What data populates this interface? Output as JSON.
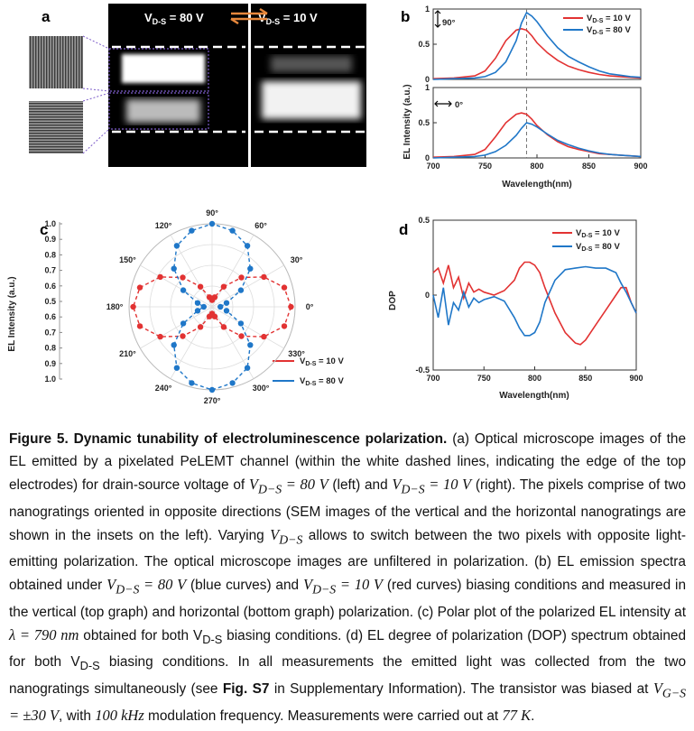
{
  "panel_a": {
    "label": "a",
    "left_title": "V",
    "left_sub": "D-S",
    "left_val": " = 80 V",
    "right_title": "V",
    "right_sub": "D-S",
    "right_val": " = 10 V",
    "swap_icon": "double-arrow-icon",
    "swap_color": "#e8883c"
  },
  "chart_data": [
    {
      "id": "b_top",
      "type": "line",
      "panel": "b",
      "annotation": "90°",
      "ylabel": "EL Intensity (a.u.)",
      "xlim": [
        700,
        900
      ],
      "ylim": [
        0,
        1
      ],
      "yticks": [
        "0",
        "0.5",
        "1"
      ],
      "xticks": [],
      "vline_x": 790,
      "series": [
        {
          "name": "VD-S = 10 V",
          "color": "#e23232",
          "x": [
            700,
            720,
            740,
            750,
            760,
            770,
            780,
            785,
            790,
            795,
            800,
            810,
            820,
            830,
            840,
            850,
            860,
            870,
            880,
            890,
            900
          ],
          "y": [
            0.01,
            0.02,
            0.05,
            0.12,
            0.3,
            0.55,
            0.7,
            0.72,
            0.7,
            0.62,
            0.52,
            0.38,
            0.27,
            0.19,
            0.14,
            0.1,
            0.07,
            0.05,
            0.04,
            0.03,
            0.02
          ]
        },
        {
          "name": "VD-S = 80 V",
          "color": "#1f77c8",
          "x": [
            700,
            720,
            740,
            750,
            760,
            770,
            780,
            785,
            790,
            795,
            800,
            810,
            820,
            830,
            840,
            850,
            860,
            870,
            880,
            890,
            900
          ],
          "y": [
            0.0,
            0.01,
            0.02,
            0.04,
            0.1,
            0.25,
            0.55,
            0.8,
            0.95,
            0.9,
            0.82,
            0.62,
            0.45,
            0.33,
            0.25,
            0.18,
            0.12,
            0.08,
            0.06,
            0.04,
            0.03
          ]
        }
      ]
    },
    {
      "id": "b_bottom",
      "type": "line",
      "panel": "b",
      "annotation": "0°",
      "xlabel": "Wavelength(nm)",
      "xlim": [
        700,
        900
      ],
      "ylim": [
        0,
        1
      ],
      "yticks": [
        "0",
        "0.5",
        "1"
      ],
      "xticks": [
        "700",
        "750",
        "800",
        "850",
        "900"
      ],
      "vline_x": 790,
      "series": [
        {
          "name": "VD-S = 10 V",
          "color": "#e23232",
          "x": [
            700,
            720,
            740,
            750,
            760,
            770,
            780,
            785,
            790,
            795,
            800,
            810,
            820,
            830,
            840,
            850,
            860,
            870,
            880,
            890,
            900
          ],
          "y": [
            0.01,
            0.02,
            0.05,
            0.12,
            0.3,
            0.5,
            0.62,
            0.64,
            0.62,
            0.55,
            0.46,
            0.33,
            0.23,
            0.16,
            0.12,
            0.09,
            0.06,
            0.05,
            0.04,
            0.03,
            0.02
          ]
        },
        {
          "name": "VD-S = 80 V",
          "color": "#1f77c8",
          "x": [
            700,
            720,
            740,
            750,
            760,
            770,
            780,
            785,
            790,
            795,
            800,
            810,
            820,
            830,
            840,
            850,
            860,
            870,
            880,
            890,
            900
          ],
          "y": [
            0.0,
            0.01,
            0.02,
            0.04,
            0.09,
            0.18,
            0.32,
            0.42,
            0.5,
            0.48,
            0.44,
            0.34,
            0.25,
            0.19,
            0.14,
            0.1,
            0.07,
            0.05,
            0.04,
            0.03,
            0.02
          ]
        }
      ]
    },
    {
      "id": "c",
      "type": "scatter",
      "panel": "c",
      "label": "c",
      "ylabel": "EL Intensity (a.u.)",
      "rticks": [
        "1.0",
        "0.9",
        "0.8",
        "0.7",
        "0.6",
        "0.5",
        "0.6",
        "0.7",
        "0.8",
        "0.9",
        "1.0"
      ],
      "angle_labels": [
        "90°",
        "60°",
        "30°",
        "0°",
        "330°",
        "300°",
        "270°",
        "240°",
        "210°",
        "180°",
        "150°",
        "120°"
      ],
      "series": [
        {
          "name": "VD-S = 10 V",
          "color": "#e23232",
          "theta": [
            0,
            15,
            30,
            45,
            60,
            75,
            90,
            105,
            120,
            135,
            150,
            165,
            180,
            195,
            210,
            225,
            240,
            255,
            270,
            285,
            300,
            315,
            330,
            345
          ],
          "r": [
            0.95,
            0.9,
            0.72,
            0.5,
            0.28,
            0.12,
            0.08,
            0.12,
            0.28,
            0.5,
            0.72,
            0.9,
            0.95,
            0.9,
            0.72,
            0.5,
            0.28,
            0.12,
            0.08,
            0.12,
            0.28,
            0.5,
            0.72,
            0.9
          ]
        },
        {
          "name": "VD-S = 80 V",
          "color": "#1f77c8",
          "theta": [
            0,
            15,
            30,
            45,
            60,
            75,
            90,
            105,
            120,
            135,
            150,
            165,
            180,
            195,
            210,
            225,
            240,
            255,
            270,
            285,
            300,
            315,
            330,
            345
          ],
          "r": [
            0.1,
            0.18,
            0.4,
            0.65,
            0.85,
            0.95,
            1.0,
            0.95,
            0.85,
            0.65,
            0.4,
            0.18,
            0.1,
            0.18,
            0.4,
            0.65,
            0.85,
            0.95,
            1.0,
            0.95,
            0.85,
            0.65,
            0.4,
            0.18
          ]
        }
      ]
    },
    {
      "id": "d",
      "type": "line",
      "panel": "d",
      "label": "d",
      "ylabel": "DOP",
      "xlabel": "Wavelength(nm)",
      "xlim": [
        700,
        900
      ],
      "ylim": [
        -0.5,
        0.5
      ],
      "yticks": [
        "-0.5",
        "0",
        "0.5"
      ],
      "xticks": [
        "700",
        "750",
        "800",
        "850",
        "900"
      ],
      "series": [
        {
          "name": "VD-S = 10 V",
          "color": "#e23232",
          "x": [
            700,
            705,
            710,
            715,
            720,
            725,
            730,
            735,
            740,
            745,
            750,
            760,
            770,
            780,
            785,
            790,
            795,
            800,
            805,
            810,
            820,
            830,
            840,
            845,
            850,
            860,
            870,
            880,
            885,
            890,
            895,
            900
          ],
          "y": [
            0.15,
            0.18,
            0.08,
            0.2,
            0.05,
            0.12,
            -0.02,
            0.08,
            0.02,
            0.04,
            0.02,
            0.0,
            0.03,
            0.1,
            0.18,
            0.22,
            0.22,
            0.2,
            0.15,
            0.05,
            -0.12,
            -0.25,
            -0.32,
            -0.33,
            -0.3,
            -0.2,
            -0.1,
            0.0,
            0.05,
            0.05,
            -0.05,
            -0.12
          ]
        },
        {
          "name": "VD-S = 80 V",
          "color": "#1f77c8",
          "x": [
            700,
            705,
            710,
            715,
            720,
            725,
            730,
            735,
            740,
            745,
            750,
            760,
            770,
            780,
            785,
            790,
            795,
            800,
            805,
            810,
            820,
            830,
            840,
            850,
            860,
            870,
            880,
            885,
            890,
            895,
            900
          ],
          "y": [
            0.0,
            -0.15,
            0.05,
            -0.2,
            -0.05,
            -0.1,
            0.02,
            -0.08,
            -0.02,
            -0.05,
            -0.03,
            -0.01,
            -0.04,
            -0.15,
            -0.22,
            -0.27,
            -0.27,
            -0.25,
            -0.18,
            -0.05,
            0.1,
            0.17,
            0.18,
            0.19,
            0.18,
            0.18,
            0.15,
            0.08,
            0.02,
            -0.05,
            -0.12
          ]
        }
      ]
    }
  ],
  "legend": {
    "red_label": "V",
    "red_sub": "D-S",
    "red_val": " = 10 V",
    "blue_label": "V",
    "blue_sub": "D-S",
    "blue_val": " = 80 V",
    "red_color": "#e23232",
    "blue_color": "#1f77c8"
  },
  "caption": {
    "title": "Figure 5. Dynamic tunability of electroluminescence polarization.",
    "s1": " (a) Optical microscope images of the EL emitted by a pixelated PeLEMT channel (within the white dashed lines, indicating the edge of the top electrodes) for drain-source voltage of ",
    "m1": "V",
    "m1_sub": "D−S",
    "m1_val": " = 80 V",
    "s2": " (left) and ",
    "m2": "V",
    "m2_sub": "D−S",
    "m2_val": " = 10 V",
    "s3": " (right). The pixels comprise of two nanogratings oriented in opposite directions (SEM images of the vertical and the horizontal nanogratings are shown in the insets on the left). Varying ",
    "m3": "V",
    "m3_sub": "D−S",
    "s4": " allows to switch between the two pixels with opposite light-emitting polarization. The optical microscope images are unfiltered in polarization. (b) EL emission spectra obtained under ",
    "m4": "V",
    "m4_sub": "D−S",
    "m4_val": " = 80 V",
    "s5": " (blue curves) and ",
    "m5": "V",
    "m5_sub": "D−S",
    "m5_val": " = 10 V",
    "s6": " (red curves) biasing conditions and measured in the vertical (top graph) and horizontal (bottom graph) polarization. (c) Polar plot of the polarized EL intensity at ",
    "m6": "λ = 790 nm",
    "s7": " obtained for both ",
    "m7": "V",
    "m7_sub": "D-S",
    "s8": " biasing conditions. (d) EL degree of polarization (DOP) spectrum obtained for both ",
    "m8": "V",
    "m8_sub": "D-S",
    "s9": " biasing conditions. In all measurements the emitted light was collected from the two nanogratings simultaneously (see ",
    "fig_ref": "Fig. S7",
    "s10": " in Supplementary Information). The transistor was biased at ",
    "m9": "V",
    "m9_sub": "G−S",
    "m9_val": " = ±30 V",
    "s11": ", with ",
    "m10": "100 kHz",
    "s12": " modulation frequency. Measurements were carried out at ",
    "m11": "77 K",
    "s13": "."
  }
}
